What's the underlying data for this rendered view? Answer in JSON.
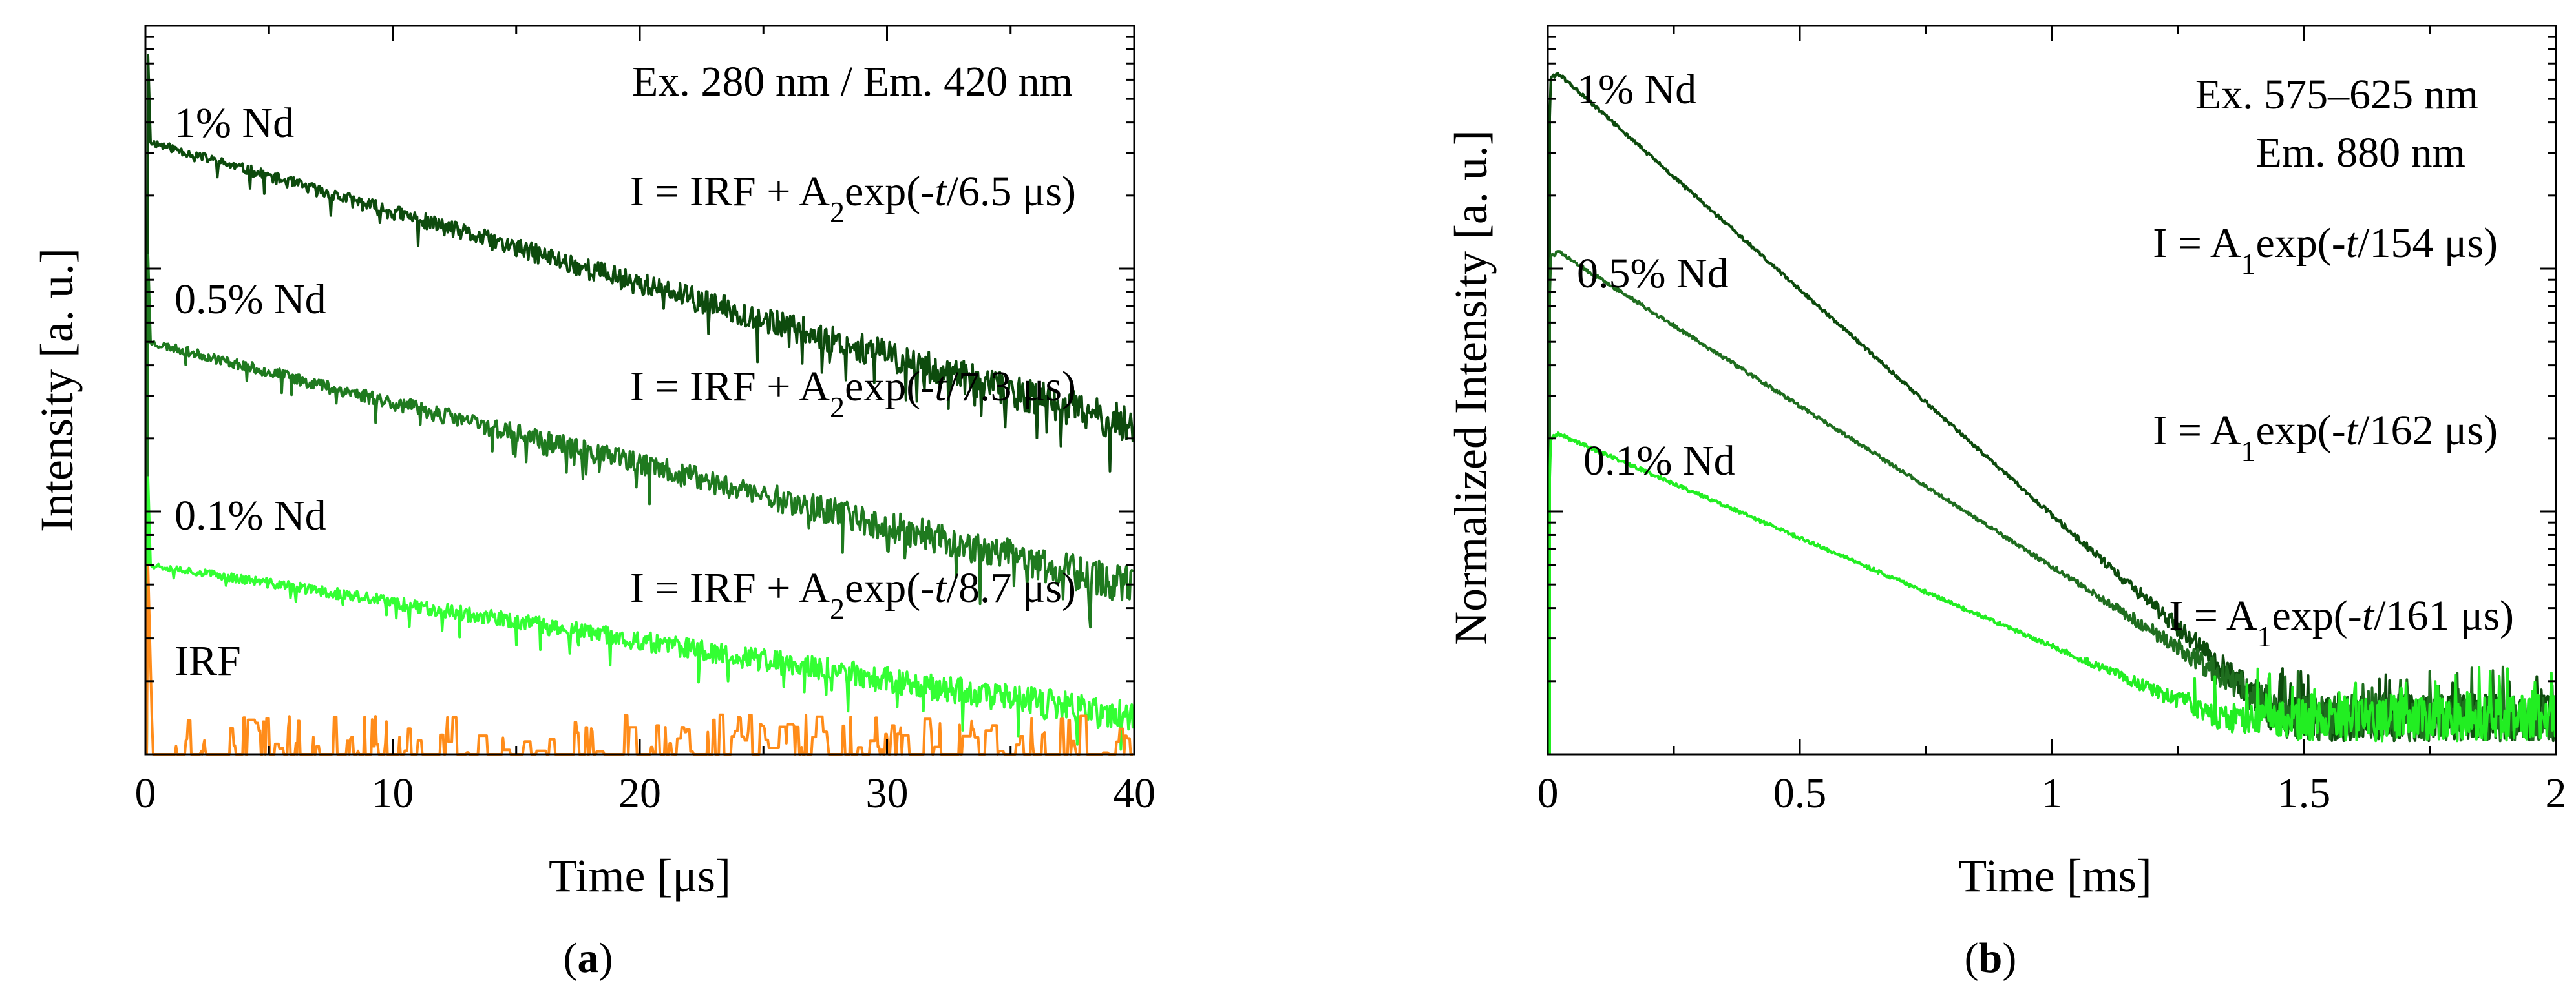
{
  "chart_data": [
    {
      "panel": "a",
      "panel_label": "a",
      "type": "line",
      "xlabel": "Time [μs]",
      "ylabel": "Intensity [a. u.]",
      "xlim": [
        0,
        40
      ],
      "xticks": [
        0,
        10,
        20,
        30,
        40
      ],
      "yscale": "log",
      "yticks_labeled": false,
      "annotation": "Ex. 280 nm / Em. 420 nm",
      "series": [
        {
          "name": "1% Nd",
          "color": "#0d4b0d",
          "decay_us": 6.5,
          "fit": {
            "pre": "I = IRF + A",
            "sub": "2",
            "mid": "exp(-",
            "t": "t",
            "post": "/6.5 μs)"
          },
          "y_start": 0.84,
          "y_end": 0.45,
          "noise": 0.035,
          "seed": 11
        },
        {
          "name": "0.5% Nd",
          "color": "#1f7a1f",
          "decay_us": 7.3,
          "fit": {
            "pre": "I = IRF + A",
            "sub": "2",
            "mid": "exp(-",
            "t": "t",
            "post": "/7.3 μs)"
          },
          "y_start": 0.565,
          "y_end": 0.23,
          "noise": 0.035,
          "seed": 23
        },
        {
          "name": "0.1% Nd",
          "color": "#33ff33",
          "decay_us": 8.7,
          "fit": {
            "pre": "I = IRF + A",
            "sub": "2",
            "mid": "exp(-",
            "t": "t",
            "post": "/8.7 μs)"
          },
          "y_start": 0.26,
          "y_end": 0.05,
          "noise": 0.03,
          "seed": 37
        },
        {
          "name": "IRF",
          "color": "#ff8c1a",
          "kind": "irf",
          "seed": 51
        }
      ]
    },
    {
      "panel": "b",
      "panel_label": "b",
      "type": "line",
      "xlabel": "Time [ms]",
      "ylabel": "Normalized Intensity [a. u.]",
      "xlim": [
        0,
        2
      ],
      "xticks": [
        0,
        0.5,
        1,
        1.5,
        2
      ],
      "xtick_labels": [
        "0",
        "0.5",
        "1",
        "1.5",
        "2"
      ],
      "yscale": "log",
      "yticks_labeled": false,
      "annotation_lines": [
        "Ex. 575–625 nm",
        "Em. 880 nm"
      ],
      "series": [
        {
          "name": "1% Nd",
          "color": "#0d4b0d",
          "decay_us": 154,
          "fit": {
            "pre": "I = A",
            "sub": "1",
            "mid": "exp(-",
            "t": "t",
            "post": "/154 μs)"
          },
          "y_peak": 0.935,
          "floor": 0.05,
          "t_floor": 1.45,
          "noise": 0.045,
          "seed": 61
        },
        {
          "name": "0.5% Nd",
          "color": "#1f6e1f",
          "decay_us": 162,
          "fit": {
            "pre": "I = A",
            "sub": "1",
            "mid": "exp(-",
            "t": "t",
            "post": "/162 μs)"
          },
          "y_peak": 0.69,
          "floor": 0.05,
          "t_floor": 1.47,
          "noise": 0.045,
          "seed": 73
        },
        {
          "name": "0.1% Nd",
          "color": "#22ee22",
          "decay_us": 161,
          "fit": {
            "pre": "I = A",
            "sub": "1",
            "mid": "exp(-",
            "t": "t",
            "post": "/161 μs)"
          },
          "y_peak": 0.44,
          "floor": 0.05,
          "t_floor": 1.33,
          "noise": 0.045,
          "seed": 89
        }
      ]
    }
  ]
}
